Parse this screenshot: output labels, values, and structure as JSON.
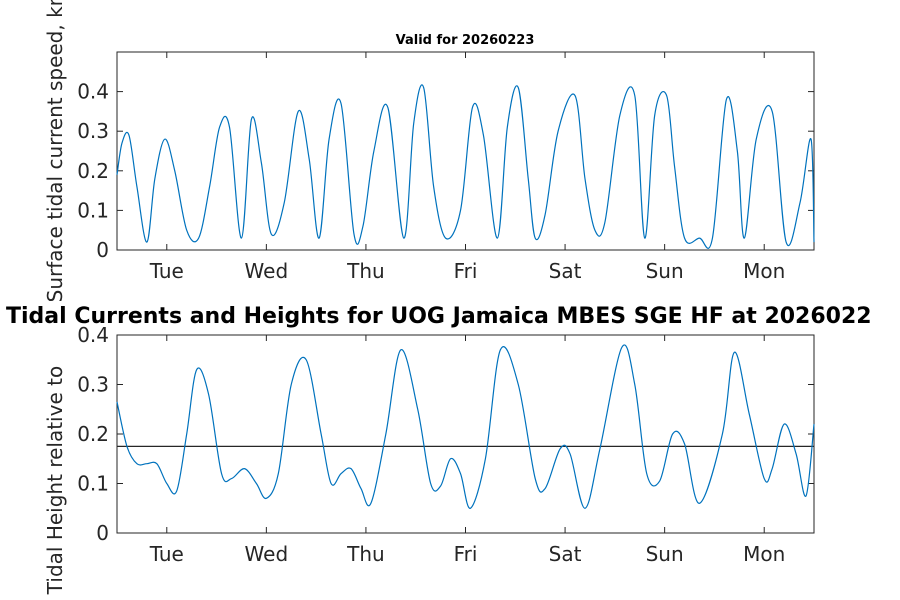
{
  "chart_data": [
    {
      "type": "line",
      "title": "Valid for 20260223",
      "ylabel": "Surface tidal current speed, kn",
      "xlabel": "",
      "ylim": [
        0,
        0.5
      ],
      "yticks": [
        0,
        0.1,
        0.2,
        0.3,
        0.4
      ],
      "ytick_labels": [
        "0",
        "0.1",
        "0.2",
        "0.3",
        "0.4"
      ],
      "xlim": [
        0,
        7
      ],
      "xticks": [
        0.5,
        1.5,
        2.5,
        3.5,
        4.5,
        5.5,
        6.5
      ],
      "xtick_labels": [
        "Tue",
        "Wed",
        "Thu",
        "Fri",
        "Sat",
        "Sun",
        "Mon"
      ],
      "grid": false,
      "series": [
        {
          "color": "#0072BD",
          "x": [
            0.0,
            0.05,
            0.12,
            0.2,
            0.3,
            0.38,
            0.48,
            0.58,
            0.7,
            0.82,
            0.93,
            1.03,
            1.13,
            1.25,
            1.35,
            1.45,
            1.55,
            1.68,
            1.82,
            1.93,
            2.03,
            2.13,
            2.25,
            2.38,
            2.47,
            2.58,
            2.72,
            2.88,
            2.98,
            3.08,
            3.18,
            3.3,
            3.45,
            3.57,
            3.68,
            3.82,
            3.92,
            4.03,
            4.13,
            4.2,
            4.3,
            4.43,
            4.6,
            4.7,
            4.8,
            4.9,
            5.05,
            5.2,
            5.3,
            5.4,
            5.52,
            5.6,
            5.7,
            5.85,
            5.98,
            6.12,
            6.23,
            6.3,
            6.42,
            6.58,
            6.72,
            6.86,
            6.97,
            7.0
          ],
          "y": [
            0.19,
            0.27,
            0.29,
            0.16,
            0.02,
            0.18,
            0.28,
            0.2,
            0.05,
            0.03,
            0.16,
            0.31,
            0.31,
            0.03,
            0.33,
            0.22,
            0.04,
            0.12,
            0.35,
            0.23,
            0.03,
            0.28,
            0.37,
            0.04,
            0.06,
            0.25,
            0.36,
            0.03,
            0.32,
            0.41,
            0.16,
            0.03,
            0.1,
            0.36,
            0.29,
            0.03,
            0.31,
            0.41,
            0.18,
            0.03,
            0.09,
            0.3,
            0.39,
            0.18,
            0.05,
            0.07,
            0.34,
            0.39,
            0.03,
            0.34,
            0.39,
            0.21,
            0.03,
            0.03,
            0.03,
            0.38,
            0.25,
            0.03,
            0.28,
            0.35,
            0.02,
            0.12,
            0.28,
            0.02
          ]
        }
      ]
    },
    {
      "type": "line",
      "title": "Tidal Currents and Heights for UOG Jamaica MBES SGE HF at 2026022",
      "ylabel": "Tidal Height relative to",
      "xlabel": "",
      "ylim": [
        0,
        0.4
      ],
      "yticks": [
        0,
        0.1,
        0.2,
        0.3,
        0.4
      ],
      "ytick_labels": [
        "0",
        "0.1",
        "0.2",
        "0.3",
        "0.4"
      ],
      "xlim": [
        0,
        7
      ],
      "xticks": [
        0.5,
        1.5,
        2.5,
        3.5,
        4.5,
        5.5,
        6.5
      ],
      "xtick_labels": [
        "Tue",
        "Wed",
        "Thu",
        "Fri",
        "Sat",
        "Sun",
        "Mon"
      ],
      "grid": false,
      "reference_line": {
        "y": 0.175,
        "color": "#262626"
      },
      "series": [
        {
          "color": "#0072BD",
          "x": [
            0.0,
            0.1,
            0.2,
            0.3,
            0.4,
            0.5,
            0.6,
            0.7,
            0.8,
            0.92,
            1.05,
            1.15,
            1.28,
            1.4,
            1.5,
            1.62,
            1.75,
            1.9,
            2.05,
            2.15,
            2.25,
            2.35,
            2.45,
            2.55,
            2.7,
            2.85,
            3.02,
            3.15,
            3.25,
            3.35,
            3.45,
            3.55,
            3.7,
            3.85,
            4.03,
            4.2,
            4.3,
            4.45,
            4.55,
            4.7,
            4.85,
            5.07,
            5.2,
            5.32,
            5.45,
            5.58,
            5.7,
            5.85,
            6.08,
            6.2,
            6.35,
            6.5,
            6.58,
            6.7,
            6.82,
            6.92,
            7.0
          ],
          "y": [
            0.265,
            0.175,
            0.14,
            0.14,
            0.14,
            0.1,
            0.085,
            0.2,
            0.33,
            0.28,
            0.12,
            0.11,
            0.13,
            0.1,
            0.07,
            0.12,
            0.3,
            0.35,
            0.2,
            0.1,
            0.12,
            0.13,
            0.09,
            0.06,
            0.2,
            0.37,
            0.25,
            0.1,
            0.095,
            0.15,
            0.12,
            0.05,
            0.15,
            0.37,
            0.3,
            0.11,
            0.09,
            0.17,
            0.16,
            0.05,
            0.17,
            0.375,
            0.3,
            0.12,
            0.105,
            0.2,
            0.18,
            0.06,
            0.2,
            0.365,
            0.24,
            0.11,
            0.13,
            0.22,
            0.16,
            0.075,
            0.22
          ]
        }
      ]
    }
  ]
}
